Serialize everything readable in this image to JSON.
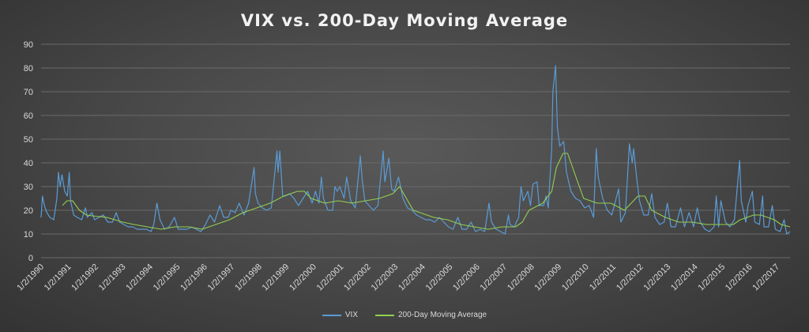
{
  "chart_data": {
    "type": "line",
    "title": "VIX vs. 200-Day Moving Average",
    "xlabel": "",
    "ylabel": "",
    "ylim": [
      0,
      90
    ],
    "yticks": [
      0,
      10,
      20,
      30,
      40,
      50,
      60,
      70,
      80,
      90
    ],
    "xlim": [
      "1990-01-02",
      "2017-06-30"
    ],
    "x_tick_labels": [
      "1/2/1990",
      "1/2/1991",
      "1/2/1992",
      "1/2/1993",
      "1/2/1994",
      "1/2/1995",
      "1/2/1996",
      "1/2/1997",
      "1/2/1998",
      "1/2/1999",
      "1/2/2000",
      "1/2/2001",
      "1/2/2002",
      "1/2/2003",
      "1/2/2004",
      "1/2/2005",
      "1/2/2006",
      "1/2/2007",
      "1/2/2008",
      "1/2/2009",
      "1/2/2010",
      "1/2/2011",
      "1/2/2012",
      "1/2/2013",
      "1/2/2014",
      "1/2/2015",
      "1/2/2016",
      "1/2/2017"
    ],
    "x_tick_dates": [
      "1990-01-02",
      "1991-01-02",
      "1992-01-02",
      "1993-01-02",
      "1994-01-02",
      "1995-01-02",
      "1996-01-02",
      "1997-01-02",
      "1998-01-02",
      "1999-01-02",
      "2000-01-02",
      "2001-01-02",
      "2002-01-02",
      "2003-01-02",
      "2004-01-02",
      "2005-01-02",
      "2006-01-02",
      "2007-01-02",
      "2008-01-02",
      "2009-01-02",
      "2010-01-02",
      "2011-01-02",
      "2012-01-02",
      "2013-01-02",
      "2014-01-02",
      "2015-01-02",
      "2016-01-02",
      "2017-01-02"
    ],
    "grid": true,
    "legend_position": "bottom",
    "series": [
      {
        "name": "VIX",
        "color": "#5b9bd5",
        "points": [
          [
            "1990-01-02",
            17
          ],
          [
            "1990-01-20",
            26
          ],
          [
            "1990-02-15",
            22
          ],
          [
            "1990-03-20",
            19
          ],
          [
            "1990-05-01",
            17
          ],
          [
            "1990-06-20",
            16
          ],
          [
            "1990-08-02",
            25
          ],
          [
            "1990-08-23",
            36
          ],
          [
            "1990-09-15",
            30
          ],
          [
            "1990-10-10",
            35
          ],
          [
            "1990-11-15",
            28
          ],
          [
            "1990-12-20",
            26
          ],
          [
            "1991-01-15",
            36
          ],
          [
            "1991-02-01",
            24
          ],
          [
            "1991-03-15",
            18
          ],
          [
            "1991-05-01",
            17
          ],
          [
            "1991-07-01",
            16
          ],
          [
            "1991-08-19",
            21
          ],
          [
            "1991-09-15",
            17
          ],
          [
            "1991-11-15",
            19
          ],
          [
            "1991-12-20",
            16
          ],
          [
            "1992-02-15",
            17
          ],
          [
            "1992-04-15",
            18
          ],
          [
            "1992-06-15",
            15
          ],
          [
            "1992-08-15",
            15
          ],
          [
            "1992-10-05",
            19
          ],
          [
            "1992-11-20",
            15
          ],
          [
            "1993-01-15",
            14
          ],
          [
            "1993-03-15",
            13
          ],
          [
            "1993-05-15",
            13
          ],
          [
            "1993-07-15",
            12
          ],
          [
            "1993-09-15",
            12
          ],
          [
            "1993-11-15",
            12
          ],
          [
            "1994-01-15",
            11
          ],
          [
            "1994-02-20",
            14
          ],
          [
            "1994-04-04",
            23
          ],
          [
            "1994-05-15",
            16
          ],
          [
            "1994-07-15",
            12
          ],
          [
            "1994-09-15",
            13
          ],
          [
            "1994-11-25",
            17
          ],
          [
            "1995-01-15",
            12
          ],
          [
            "1995-03-15",
            12
          ],
          [
            "1995-05-15",
            12
          ],
          [
            "1995-07-15",
            13
          ],
          [
            "1995-09-15",
            12
          ],
          [
            "1995-11-15",
            11
          ],
          [
            "1996-01-15",
            14
          ],
          [
            "1996-03-15",
            18
          ],
          [
            "1996-05-15",
            15
          ],
          [
            "1996-07-24",
            22
          ],
          [
            "1996-09-15",
            17
          ],
          [
            "1996-11-15",
            17
          ],
          [
            "1996-12-20",
            20
          ],
          [
            "1997-02-15",
            19
          ],
          [
            "1997-04-10",
            23
          ],
          [
            "1997-06-15",
            18
          ],
          [
            "1997-08-15",
            23
          ],
          [
            "1997-10-28",
            38
          ],
          [
            "1997-11-15",
            27
          ],
          [
            "1997-12-20",
            23
          ],
          [
            "1998-02-15",
            21
          ],
          [
            "1998-04-15",
            20
          ],
          [
            "1998-06-15",
            21
          ],
          [
            "1998-08-31",
            45
          ],
          [
            "1998-09-15",
            36
          ],
          [
            "1998-10-08",
            45
          ],
          [
            "1998-11-15",
            26
          ],
          [
            "1998-12-20",
            26
          ],
          [
            "1999-02-15",
            27
          ],
          [
            "1999-04-15",
            25
          ],
          [
            "1999-06-15",
            22
          ],
          [
            "1999-08-15",
            25
          ],
          [
            "1999-10-15",
            28
          ],
          [
            "1999-12-15",
            23
          ],
          [
            "2000-01-28",
            28
          ],
          [
            "2000-03-15",
            23
          ],
          [
            "2000-04-17",
            34
          ],
          [
            "2000-05-15",
            25
          ],
          [
            "2000-07-15",
            20
          ],
          [
            "2000-09-15",
            20
          ],
          [
            "2000-10-15",
            30
          ],
          [
            "2000-11-15",
            28
          ],
          [
            "2000-12-20",
            30
          ],
          [
            "2001-02-15",
            25
          ],
          [
            "2001-03-22",
            34
          ],
          [
            "2001-05-15",
            24
          ],
          [
            "2001-07-15",
            21
          ],
          [
            "2001-09-21",
            43
          ],
          [
            "2001-10-15",
            33
          ],
          [
            "2001-11-20",
            24
          ],
          [
            "2002-01-15",
            22
          ],
          [
            "2002-03-15",
            20
          ],
          [
            "2002-05-15",
            22
          ],
          [
            "2002-07-24",
            45
          ],
          [
            "2002-08-15",
            32
          ],
          [
            "2002-10-09",
            42
          ],
          [
            "2002-11-15",
            29
          ],
          [
            "2002-12-20",
            28
          ],
          [
            "2003-02-15",
            34
          ],
          [
            "2003-03-15",
            30
          ],
          [
            "2003-04-15",
            25
          ],
          [
            "2003-06-15",
            21
          ],
          [
            "2003-08-15",
            20
          ],
          [
            "2003-10-15",
            18
          ],
          [
            "2003-12-15",
            17
          ],
          [
            "2004-02-15",
            16
          ],
          [
            "2004-04-15",
            16
          ],
          [
            "2004-06-15",
            15
          ],
          [
            "2004-08-15",
            17
          ],
          [
            "2004-10-15",
            15
          ],
          [
            "2004-12-15",
            13
          ],
          [
            "2005-02-15",
            12
          ],
          [
            "2005-04-20",
            17
          ],
          [
            "2005-06-15",
            12
          ],
          [
            "2005-08-15",
            12
          ],
          [
            "2005-10-15",
            15
          ],
          [
            "2005-12-15",
            11
          ],
          [
            "2006-02-15",
            12
          ],
          [
            "2006-04-15",
            11
          ],
          [
            "2006-06-13",
            23
          ],
          [
            "2006-07-15",
            15
          ],
          [
            "2006-09-15",
            12
          ],
          [
            "2006-11-15",
            11
          ],
          [
            "2007-01-15",
            10
          ],
          [
            "2007-02-27",
            18
          ],
          [
            "2007-03-20",
            14
          ],
          [
            "2007-05-15",
            13
          ],
          [
            "2007-07-15",
            17
          ],
          [
            "2007-08-16",
            30
          ],
          [
            "2007-09-15",
            24
          ],
          [
            "2007-11-15",
            28
          ],
          [
            "2007-12-20",
            22
          ],
          [
            "2008-01-22",
            31
          ],
          [
            "2008-03-17",
            32
          ],
          [
            "2008-04-15",
            22
          ],
          [
            "2008-06-15",
            22
          ],
          [
            "2008-07-15",
            26
          ],
          [
            "2008-08-15",
            21
          ],
          [
            "2008-09-29",
            46
          ],
          [
            "2008-10-15",
            70
          ],
          [
            "2008-11-20",
            81
          ],
          [
            "2008-12-15",
            55
          ],
          [
            "2009-01-15",
            47
          ],
          [
            "2009-03-09",
            49
          ],
          [
            "2009-04-15",
            36
          ],
          [
            "2009-06-15",
            28
          ],
          [
            "2009-08-15",
            25
          ],
          [
            "2009-10-15",
            24
          ],
          [
            "2009-12-15",
            21
          ],
          [
            "2010-02-15",
            22
          ],
          [
            "2010-04-15",
            17
          ],
          [
            "2010-05-20",
            46
          ],
          [
            "2010-06-15",
            34
          ],
          [
            "2010-08-15",
            25
          ],
          [
            "2010-10-15",
            20
          ],
          [
            "2010-12-15",
            18
          ],
          [
            "2011-03-16",
            29
          ],
          [
            "2011-04-15",
            15
          ],
          [
            "2011-06-15",
            19
          ],
          [
            "2011-08-08",
            48
          ],
          [
            "2011-09-15",
            40
          ],
          [
            "2011-10-03",
            46
          ],
          [
            "2011-11-15",
            33
          ],
          [
            "2011-12-20",
            24
          ],
          [
            "2012-02-15",
            18
          ],
          [
            "2012-04-15",
            18
          ],
          [
            "2012-06-01",
            27
          ],
          [
            "2012-07-15",
            17
          ],
          [
            "2012-09-15",
            14
          ],
          [
            "2012-11-15",
            15
          ],
          [
            "2012-12-28",
            23
          ],
          [
            "2013-02-15",
            13
          ],
          [
            "2013-04-15",
            13
          ],
          [
            "2013-06-24",
            21
          ],
          [
            "2013-08-15",
            13
          ],
          [
            "2013-10-15",
            19
          ],
          [
            "2013-12-15",
            13
          ],
          [
            "2014-02-03",
            21
          ],
          [
            "2014-03-15",
            15
          ],
          [
            "2014-05-15",
            12
          ],
          [
            "2014-07-15",
            11
          ],
          [
            "2014-09-15",
            13
          ],
          [
            "2014-10-15",
            26
          ],
          [
            "2014-11-15",
            13
          ],
          [
            "2014-12-16",
            24
          ],
          [
            "2015-02-15",
            15
          ],
          [
            "2015-04-15",
            13
          ],
          [
            "2015-06-15",
            16
          ],
          [
            "2015-08-24",
            41
          ],
          [
            "2015-09-15",
            24
          ],
          [
            "2015-11-15",
            15
          ],
          [
            "2015-12-15",
            22
          ],
          [
            "2016-02-11",
            28
          ],
          [
            "2016-03-15",
            15
          ],
          [
            "2016-05-15",
            14
          ],
          [
            "2016-06-27",
            26
          ],
          [
            "2016-07-15",
            13
          ],
          [
            "2016-09-15",
            13
          ],
          [
            "2016-11-04",
            22
          ],
          [
            "2016-12-15",
            12
          ],
          [
            "2017-02-15",
            11
          ],
          [
            "2017-04-13",
            16
          ],
          [
            "2017-05-15",
            10
          ],
          [
            "2017-06-30",
            11
          ]
        ]
      },
      {
        "name": "200-Day Moving Average",
        "color": "#92d050",
        "points": [
          [
            "1990-10-15",
            22
          ],
          [
            "1990-11-15",
            23
          ],
          [
            "1990-12-15",
            24
          ],
          [
            "1991-03-01",
            24
          ],
          [
            "1991-06-01",
            20
          ],
          [
            "1991-09-01",
            18
          ],
          [
            "1992-01-01",
            17.5
          ],
          [
            "1992-06-01",
            17
          ],
          [
            "1993-01-01",
            15
          ],
          [
            "1993-06-01",
            14
          ],
          [
            "1993-12-01",
            13
          ],
          [
            "1994-06-01",
            12
          ],
          [
            "1994-12-01",
            13
          ],
          [
            "1995-06-01",
            13
          ],
          [
            "1995-12-01",
            12
          ],
          [
            "1996-06-01",
            14
          ],
          [
            "1996-12-01",
            16
          ],
          [
            "1997-06-01",
            19
          ],
          [
            "1997-12-01",
            21
          ],
          [
            "1998-06-01",
            23
          ],
          [
            "1998-12-01",
            26
          ],
          [
            "1999-06-01",
            28
          ],
          [
            "1999-09-01",
            28
          ],
          [
            "1999-12-01",
            25
          ],
          [
            "2000-06-01",
            23
          ],
          [
            "2000-12-01",
            24
          ],
          [
            "2001-06-01",
            23
          ],
          [
            "2001-12-01",
            24
          ],
          [
            "2002-06-01",
            25
          ],
          [
            "2002-12-01",
            27
          ],
          [
            "2003-03-01",
            30
          ],
          [
            "2003-06-01",
            25
          ],
          [
            "2003-09-01",
            20
          ],
          [
            "2003-12-01",
            19
          ],
          [
            "2004-06-01",
            17
          ],
          [
            "2004-12-01",
            16
          ],
          [
            "2005-06-01",
            14
          ],
          [
            "2005-12-01",
            13
          ],
          [
            "2006-06-01",
            12
          ],
          [
            "2006-12-01",
            13
          ],
          [
            "2007-06-01",
            13
          ],
          [
            "2007-09-01",
            15
          ],
          [
            "2007-12-01",
            20
          ],
          [
            "2008-06-01",
            23
          ],
          [
            "2008-10-01",
            28
          ],
          [
            "2008-12-01",
            38
          ],
          [
            "2009-03-01",
            44
          ],
          [
            "2009-05-01",
            44
          ],
          [
            "2009-09-01",
            33
          ],
          [
            "2009-12-01",
            25
          ],
          [
            "2010-06-01",
            23
          ],
          [
            "2010-12-01",
            23
          ],
          [
            "2011-06-01",
            20
          ],
          [
            "2011-09-01",
            23
          ],
          [
            "2011-12-01",
            26
          ],
          [
            "2012-03-01",
            26
          ],
          [
            "2012-06-01",
            20
          ],
          [
            "2012-12-01",
            17
          ],
          [
            "2013-06-01",
            15
          ],
          [
            "2013-12-01",
            15
          ],
          [
            "2014-06-01",
            14
          ],
          [
            "2014-12-01",
            14
          ],
          [
            "2015-06-01",
            14
          ],
          [
            "2015-09-01",
            16
          ],
          [
            "2015-12-01",
            17
          ],
          [
            "2016-03-01",
            18
          ],
          [
            "2016-06-01",
            18
          ],
          [
            "2016-09-01",
            17
          ],
          [
            "2016-12-01",
            16
          ],
          [
            "2017-03-01",
            14
          ],
          [
            "2017-06-30",
            13
          ]
        ]
      }
    ]
  }
}
